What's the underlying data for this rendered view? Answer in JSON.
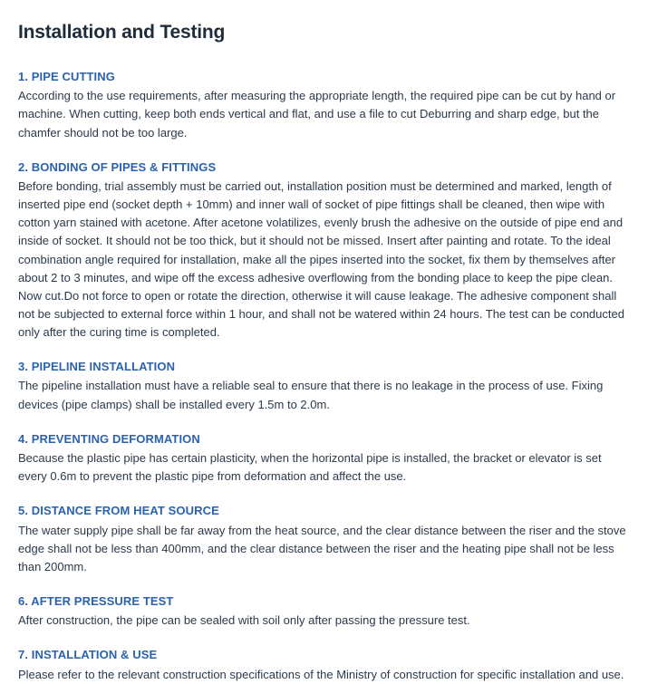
{
  "title": "Installation and Testing",
  "sections": [
    {
      "heading": "1. PIPE CUTTING",
      "body": "According to the use requirements, after measuring the appropriate length, the required pipe can be cut by hand or machine. When cutting, keep both ends vertical and flat, and use a file to cut Deburring and sharp edge, but the chamfer should not be too large."
    },
    {
      "heading": "2. BONDING OF PIPES & FITTINGS",
      "body": "Before bonding, trial assembly must be carried out, installation position must be determined and marked, length of inserted pipe end (socket depth + 10mm) and inner wall of socket of pipe fittings shall be cleaned, then wipe with cotton yarn stained with acetone. After acetone volatilizes, evenly brush the adhesive on the outside of pipe end and inside of socket. It should not be too thick, but it should not be missed. Insert after painting and rotate. To the ideal combination angle required for installation, make all the pipes inserted into the socket, fix them by themselves after about 2 to 3 minutes, and wipe off the excess adhesive overflowing from the bonding place to keep the pipe clean. Now cut.Do not force to open or rotate the direction, otherwise it will cause leakage. The adhesive component shall not be subjected to external force within 1 hour, and shall not be watered within 24 hours. The test can be conducted only after the curing time is completed."
    },
    {
      "heading": "3. PIPELINE INSTALLATION",
      "body": "The pipeline installation must have a reliable seal to ensure that there is no leakage in the process of use. Fixing devices (pipe clamps) shall be installed every 1.5m to 2.0m."
    },
    {
      "heading": "4. PREVENTING DEFORMATION",
      "body": "Because the plastic pipe has certain plasticity, when the horizontal pipe is installed, the bracket or elevator is set every 0.6m to prevent the plastic pipe from deformation and affect the use."
    },
    {
      "heading": "5. DISTANCE FROM HEAT SOURCE",
      "body": "The water supply pipe shall be far away from the heat source, and the clear distance between the riser and the stove edge shall not be less than 400mm, and the clear distance between the riser and the heating pipe shall not be less than 200mm."
    },
    {
      "heading": "6. AFTER PRESSURE TEST",
      "body": "After construction, the pipe can be sealed with soil only after passing the pressure test."
    },
    {
      "heading": "7. INSTALLATION & USE",
      "body": "Please refer to the relevant construction specifications of the Ministry of construction for specific installation and use."
    }
  ]
}
